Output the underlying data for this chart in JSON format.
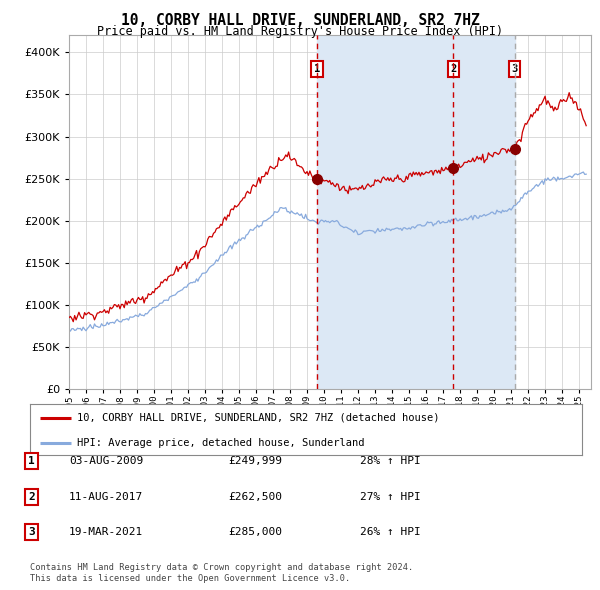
{
  "title": "10, CORBY HALL DRIVE, SUNDERLAND, SR2 7HZ",
  "subtitle": "Price paid vs. HM Land Registry's House Price Index (HPI)",
  "ylim": [
    0,
    420000
  ],
  "yticks": [
    0,
    50000,
    100000,
    150000,
    200000,
    250000,
    300000,
    350000,
    400000
  ],
  "ytick_labels": [
    "£0",
    "£50K",
    "£100K",
    "£150K",
    "£200K",
    "£250K",
    "£300K",
    "£350K",
    "£400K"
  ],
  "xlim_start": 1995.0,
  "xlim_end": 2025.7,
  "plot_bg_color": "#ffffff",
  "grid_color": "#cccccc",
  "red_line_color": "#cc0000",
  "blue_line_color": "#88aadd",
  "shading_color": "#dce8f5",
  "sale1_date_x": 2009.583,
  "sale1_price": 249999,
  "sale2_date_x": 2017.608,
  "sale2_price": 262500,
  "sale3_date_x": 2021.208,
  "sale3_price": 285000,
  "sale1_label": "1",
  "sale2_label": "2",
  "sale3_label": "3",
  "legend_red": "10, CORBY HALL DRIVE, SUNDERLAND, SR2 7HZ (detached house)",
  "legend_blue": "HPI: Average price, detached house, Sunderland",
  "table": [
    {
      "num": "1",
      "date": "03-AUG-2009",
      "price": "£249,999",
      "pct": "28% ↑ HPI"
    },
    {
      "num": "2",
      "date": "11-AUG-2017",
      "price": "£262,500",
      "pct": "27% ↑ HPI"
    },
    {
      "num": "3",
      "date": "19-MAR-2021",
      "price": "£285,000",
      "pct": "26% ↑ HPI"
    }
  ],
  "footnote1": "Contains HM Land Registry data © Crown copyright and database right 2024.",
  "footnote2": "This data is licensed under the Open Government Licence v3.0."
}
